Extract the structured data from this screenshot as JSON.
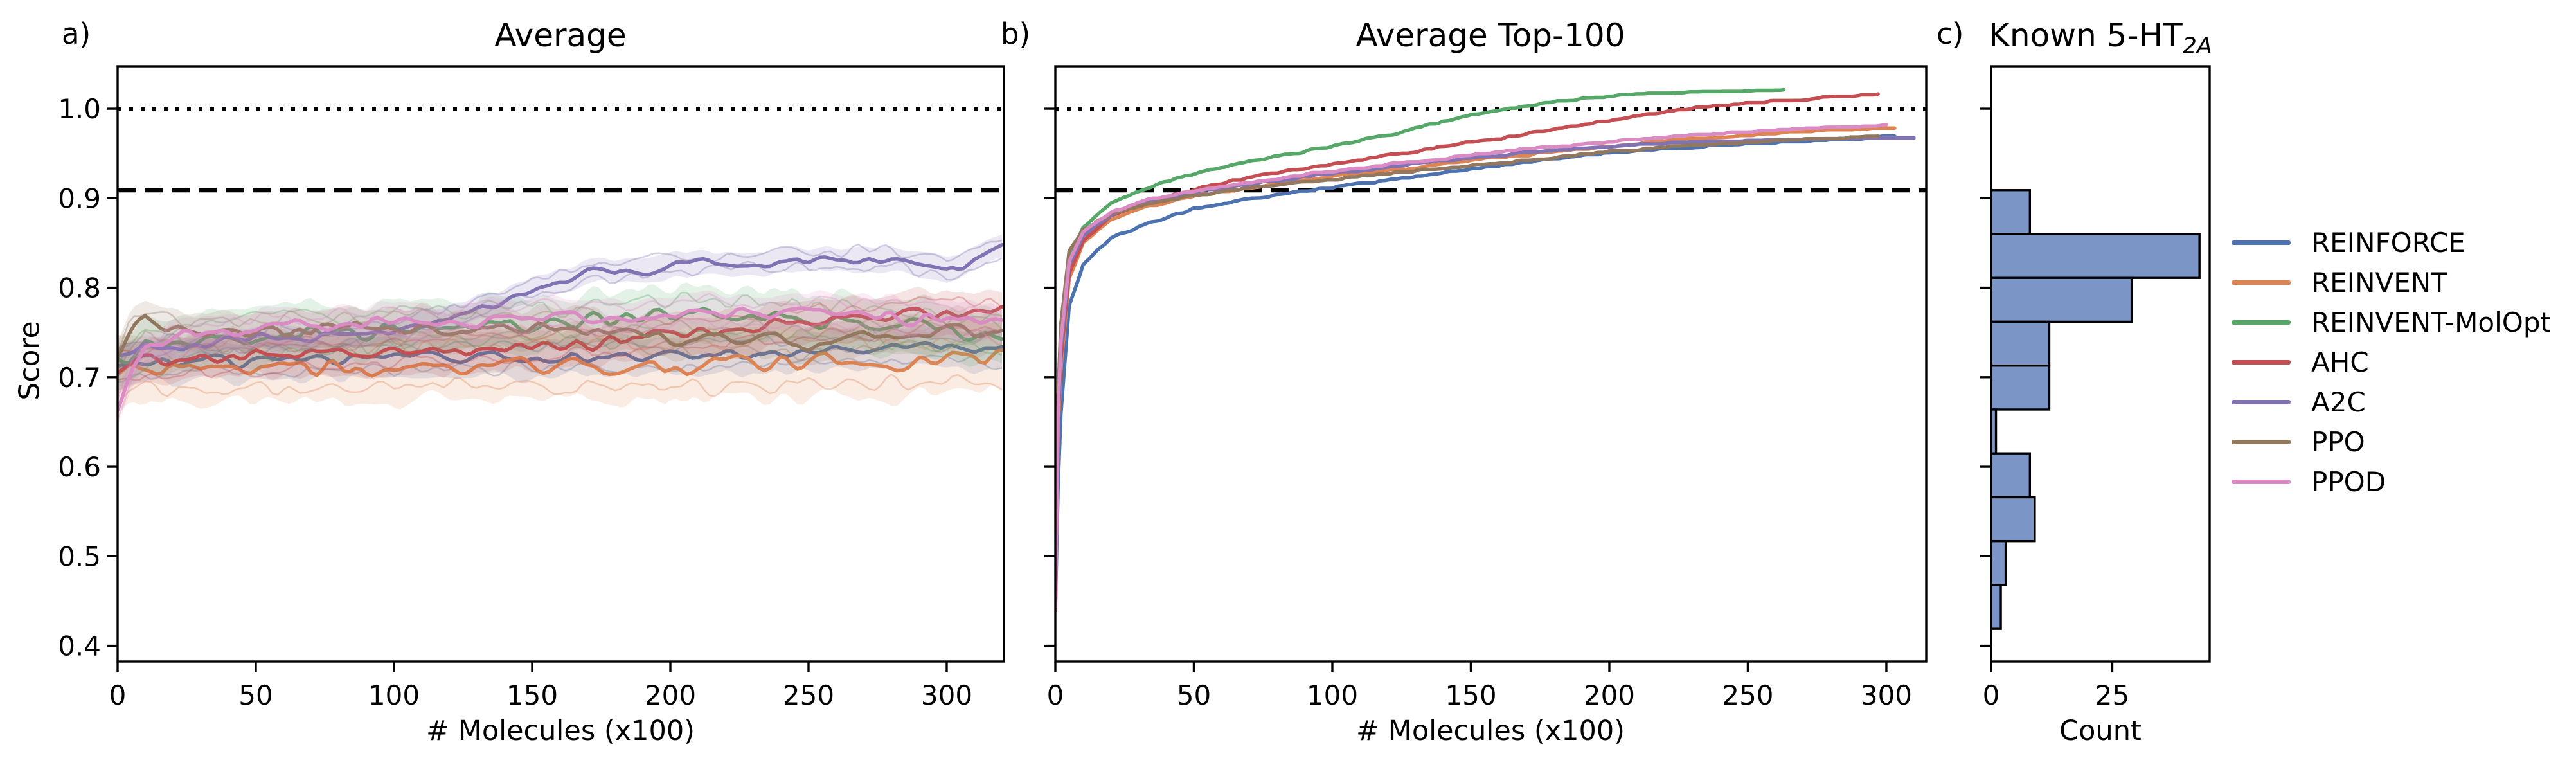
{
  "figure": {
    "background": "#ffffff"
  },
  "panels": {
    "a": {
      "letter": "a)",
      "title": "Average",
      "xlabel": "# Molecules (x100)",
      "ylabel": "Score"
    },
    "b": {
      "letter": "b)",
      "title": "Average Top-100",
      "xlabel": "# Molecules (x100)"
    },
    "c": {
      "letter": "c)",
      "title_main": "Known 5-HT",
      "title_sub": "2A",
      "xlabel": "Count"
    }
  },
  "legend": {
    "items": [
      {
        "label": "REINFORCE",
        "color": "#4C72B0"
      },
      {
        "label": "REINVENT",
        "color": "#DD8452"
      },
      {
        "label": "REINVENT-MolOpt",
        "color": "#55A868"
      },
      {
        "label": "AHC",
        "color": "#C44E52"
      },
      {
        "label": "A2C",
        "color": "#8172B3"
      },
      {
        "label": "PPO",
        "color": "#937860"
      },
      {
        "label": "PPOD",
        "color": "#DA8BC3"
      }
    ]
  },
  "chart_data": [
    {
      "id": "a",
      "type": "line",
      "title": "Average",
      "xlabel": "# Molecules (x100)",
      "ylabel": "Score",
      "xlim": [
        0,
        320.7
      ],
      "ylim": [
        0.3825,
        1.0474
      ],
      "xticks": {
        "values": [
          0,
          50,
          100,
          150,
          200,
          250,
          300
        ],
        "labels": [
          "0",
          "50",
          "100",
          "150",
          "200",
          "250",
          "300"
        ]
      },
      "yticks": {
        "values": [
          1.0,
          0.9,
          0.8,
          0.7,
          0.6,
          0.5,
          0.4
        ],
        "labels": [
          "1.0",
          "0.9",
          "0.8",
          "0.7",
          "0.6",
          "0.5",
          "0.4"
        ]
      },
      "show_ytick_labels": true,
      "ref_lines": [
        {
          "y": 1.0,
          "style": "dotted"
        },
        {
          "y": 0.909,
          "style": "dashed"
        }
      ],
      "series": [
        {
          "name": "REINFORCE",
          "color": "#4C72B0",
          "noise_amp": 0.012,
          "band": 0.022,
          "seed": 11,
          "x": [
            0,
            5,
            10,
            25,
            50,
            75,
            100,
            125,
            150,
            175,
            200,
            225,
            250,
            275,
            300,
            320
          ],
          "y": [
            0.705,
            0.712,
            0.714,
            0.716,
            0.718,
            0.72,
            0.72,
            0.722,
            0.724,
            0.725,
            0.724,
            0.728,
            0.73,
            0.73,
            0.732,
            0.73
          ]
        },
        {
          "name": "REINVENT",
          "color": "#DD8452",
          "noise_amp": 0.016,
          "band": 0.038,
          "seed": 22,
          "x": [
            0,
            5,
            10,
            25,
            50,
            75,
            100,
            125,
            150,
            175,
            200,
            225,
            250,
            275,
            300,
            320
          ],
          "y": [
            0.7,
            0.708,
            0.71,
            0.708,
            0.71,
            0.71,
            0.712,
            0.71,
            0.714,
            0.712,
            0.71,
            0.714,
            0.716,
            0.716,
            0.72,
            0.718
          ]
        },
        {
          "name": "REINVENT-MolOpt",
          "color": "#55A868",
          "noise_amp": 0.015,
          "band": 0.03,
          "seed": 33,
          "x": [
            0,
            5,
            10,
            25,
            50,
            75,
            100,
            125,
            150,
            175,
            200,
            225,
            250,
            275,
            300,
            320
          ],
          "y": [
            0.715,
            0.725,
            0.73,
            0.737,
            0.742,
            0.75,
            0.755,
            0.76,
            0.763,
            0.765,
            0.768,
            0.765,
            0.762,
            0.758,
            0.75,
            0.742
          ]
        },
        {
          "name": "AHC",
          "color": "#C44E52",
          "noise_amp": 0.012,
          "band": 0.024,
          "seed": 44,
          "x": [
            0,
            5,
            10,
            25,
            50,
            75,
            100,
            125,
            150,
            175,
            200,
            225,
            250,
            275,
            300,
            320
          ],
          "y": [
            0.71,
            0.714,
            0.716,
            0.72,
            0.724,
            0.726,
            0.728,
            0.73,
            0.734,
            0.74,
            0.748,
            0.754,
            0.76,
            0.765,
            0.772,
            0.77
          ]
        },
        {
          "name": "A2C",
          "color": "#8172B3",
          "noise_amp": 0.011,
          "band": 0.013,
          "seed": 55,
          "x": [
            0,
            5,
            10,
            25,
            50,
            75,
            100,
            125,
            150,
            175,
            200,
            225,
            250,
            275,
            300,
            320
          ],
          "y": [
            0.72,
            0.728,
            0.732,
            0.737,
            0.742,
            0.746,
            0.752,
            0.77,
            0.8,
            0.818,
            0.825,
            0.828,
            0.83,
            0.833,
            0.82,
            0.845
          ]
        },
        {
          "name": "PPO",
          "color": "#937860",
          "noise_amp": 0.014,
          "band": 0.022,
          "seed": 66,
          "x": [
            0,
            5,
            10,
            25,
            50,
            75,
            100,
            125,
            150,
            175,
            200,
            225,
            250,
            275,
            300,
            320
          ],
          "y": [
            0.72,
            0.755,
            0.765,
            0.748,
            0.75,
            0.752,
            0.755,
            0.757,
            0.758,
            0.75,
            0.742,
            0.745,
            0.74,
            0.744,
            0.75,
            0.755
          ]
        },
        {
          "name": "PPOD",
          "color": "#DA8BC3",
          "noise_amp": 0.013,
          "band": 0.02,
          "seed": 77,
          "x": [
            0,
            5,
            10,
            25,
            50,
            75,
            100,
            125,
            150,
            175,
            200,
            225,
            250,
            275,
            300,
            320
          ],
          "y": [
            0.665,
            0.71,
            0.73,
            0.748,
            0.753,
            0.758,
            0.76,
            0.764,
            0.768,
            0.766,
            0.772,
            0.774,
            0.768,
            0.77,
            0.766,
            0.76
          ]
        }
      ]
    },
    {
      "id": "b",
      "type": "line",
      "title": "Average Top-100",
      "xlabel": "# Molecules (x100)",
      "xlim": [
        0,
        314.4
      ],
      "ylim": [
        0.3825,
        1.0474
      ],
      "xticks": {
        "values": [
          0,
          50,
          100,
          150,
          200,
          250,
          300
        ],
        "labels": [
          "0",
          "50",
          "100",
          "150",
          "200",
          "250",
          "300"
        ]
      },
      "yticks": {
        "values": [
          1.0,
          0.9,
          0.8,
          0.7,
          0.6,
          0.5,
          0.4
        ],
        "labels": [
          "1.0",
          "0.9",
          "0.8",
          "0.7",
          "0.6",
          "0.5",
          "0.4"
        ]
      },
      "show_ytick_labels": false,
      "ref_lines": [
        {
          "y": 1.0,
          "style": "dotted"
        },
        {
          "y": 0.909,
          "style": "dashed"
        }
      ],
      "series": [
        {
          "name": "REINFORCE",
          "color": "#4C72B0",
          "seed": 101,
          "x": [
            0,
            0.5,
            1,
            2,
            5,
            10,
            20,
            30,
            50,
            75,
            100,
            125,
            150,
            175,
            200,
            225,
            250,
            275,
            303
          ],
          "y": [
            0.44,
            0.5,
            0.58,
            0.66,
            0.78,
            0.825,
            0.856,
            0.868,
            0.888,
            0.902,
            0.912,
            0.922,
            0.932,
            0.942,
            0.951,
            0.956,
            0.96,
            0.964,
            0.969
          ]
        },
        {
          "name": "REINVENT",
          "color": "#DD8452",
          "seed": 102,
          "x": [
            0,
            0.5,
            1,
            2,
            5,
            10,
            20,
            30,
            50,
            75,
            100,
            125,
            150,
            175,
            200,
            225,
            250,
            275,
            303
          ],
          "y": [
            0.44,
            0.52,
            0.64,
            0.71,
            0.81,
            0.85,
            0.875,
            0.888,
            0.902,
            0.914,
            0.924,
            0.933,
            0.942,
            0.95,
            0.958,
            0.965,
            0.97,
            0.975,
            0.979
          ]
        },
        {
          "name": "REINVENT-MolOpt",
          "color": "#55A868",
          "seed": 103,
          "x": [
            0,
            0.5,
            1,
            2,
            5,
            10,
            20,
            30,
            50,
            75,
            100,
            125,
            150,
            175,
            200,
            225,
            250,
            263
          ],
          "y": [
            0.44,
            0.53,
            0.66,
            0.73,
            0.83,
            0.868,
            0.895,
            0.908,
            0.928,
            0.944,
            0.958,
            0.974,
            0.993,
            1.006,
            1.014,
            1.018,
            1.0195,
            1.0205
          ]
        },
        {
          "name": "AHC",
          "color": "#C44E52",
          "seed": 104,
          "x": [
            0,
            0.5,
            1,
            2,
            5,
            10,
            20,
            30,
            50,
            75,
            100,
            125,
            150,
            175,
            200,
            225,
            250,
            275,
            297
          ],
          "y": [
            0.44,
            0.52,
            0.65,
            0.72,
            0.815,
            0.852,
            0.88,
            0.893,
            0.91,
            0.926,
            0.938,
            0.95,
            0.962,
            0.974,
            0.987,
            0.999,
            1.006,
            1.012,
            1.016
          ]
        },
        {
          "name": "A2C",
          "color": "#8172B3",
          "seed": 105,
          "x": [
            0,
            0.5,
            1,
            2,
            5,
            10,
            20,
            30,
            50,
            75,
            100,
            125,
            150,
            175,
            200,
            225,
            250,
            275,
            310
          ],
          "y": [
            0.44,
            0.52,
            0.65,
            0.73,
            0.825,
            0.858,
            0.882,
            0.893,
            0.906,
            0.918,
            0.928,
            0.937,
            0.945,
            0.952,
            0.958,
            0.962,
            0.964,
            0.966,
            0.967
          ]
        },
        {
          "name": "PPO",
          "color": "#937860",
          "seed": 106,
          "x": [
            0,
            0.5,
            1,
            2,
            5,
            10,
            20,
            30,
            50,
            75,
            100,
            125,
            150,
            175,
            200,
            225,
            250,
            275,
            297
          ],
          "y": [
            0.44,
            0.55,
            0.68,
            0.76,
            0.84,
            0.864,
            0.882,
            0.891,
            0.903,
            0.913,
            0.921,
            0.929,
            0.936,
            0.944,
            0.952,
            0.958,
            0.962,
            0.966,
            0.969
          ]
        },
        {
          "name": "PPOD",
          "color": "#DA8BC3",
          "seed": 107,
          "x": [
            0,
            0.5,
            1,
            2,
            5,
            10,
            20,
            30,
            50,
            75,
            100,
            125,
            150,
            175,
            200,
            225,
            250,
            275,
            300
          ],
          "y": [
            0.44,
            0.52,
            0.66,
            0.74,
            0.83,
            0.862,
            0.884,
            0.896,
            0.908,
            0.92,
            0.93,
            0.939,
            0.948,
            0.956,
            0.963,
            0.969,
            0.974,
            0.978,
            0.981
          ]
        }
      ]
    },
    {
      "id": "c",
      "type": "histogram-horizontal",
      "title": "Known 5-HT2A",
      "xlabel": "Count",
      "xlim": [
        0,
        45.1
      ],
      "ylim": [
        0.3825,
        1.0474
      ],
      "xticks": {
        "values": [
          0,
          25
        ],
        "labels": [
          "0",
          "25"
        ]
      },
      "yticks": {
        "values": [
          1.0,
          0.9,
          0.8,
          0.7,
          0.6,
          0.5,
          0.4
        ],
        "labels": [
          "1.0",
          "0.9",
          "0.8",
          "0.7",
          "0.6",
          "0.5",
          "0.4"
        ]
      },
      "show_ytick_labels": false,
      "bin_edges": [
        0.909,
        0.86,
        0.811,
        0.762,
        0.713,
        0.664,
        0.615,
        0.566,
        0.517,
        0.468,
        0.419
      ],
      "counts": [
        8,
        43,
        29,
        12,
        12,
        1,
        8,
        9,
        3,
        2
      ],
      "bar_fill": "#7B96C6",
      "bar_edge": "#000000"
    }
  ]
}
